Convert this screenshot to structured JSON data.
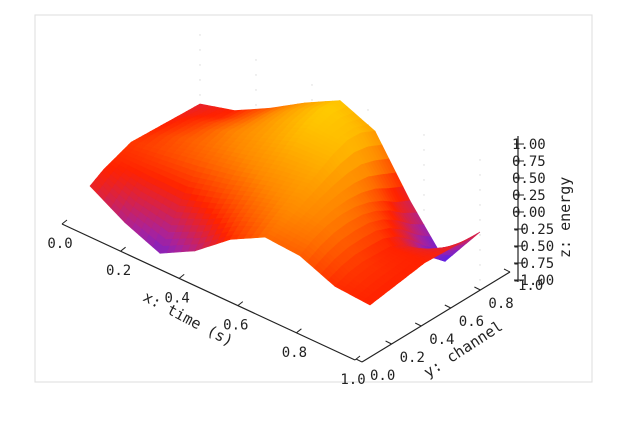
{
  "chart_data": {
    "type": "surface",
    "title": "",
    "xlabel": "x: time (s)",
    "ylabel": "y: channel",
    "zlabel": "z: energy",
    "xlim": [
      0.0,
      1.0
    ],
    "ylim": [
      0.0,
      1.0
    ],
    "zlim": [
      -1.0,
      1.0
    ],
    "x_ticks": [
      "0.0",
      "0.2",
      "0.4",
      "0.6",
      "0.8",
      "1.0"
    ],
    "y_ticks": [
      "0.0",
      "0.2",
      "0.4",
      "0.6",
      "0.8",
      "1.0"
    ],
    "z_ticks": [
      "1.00",
      "0.75",
      "0.50",
      "0.25",
      "0.00",
      "-0.25",
      "-0.50",
      "-0.75",
      "-1.00"
    ],
    "grid": true,
    "colormap": [
      "#4422ff",
      "#aa2299",
      "#ff2200",
      "#ff8800",
      "#ffcc00"
    ],
    "x": [
      0.0,
      0.125,
      0.25,
      0.375,
      0.5,
      0.625,
      0.75,
      0.875,
      1.0
    ],
    "y": [
      0.0,
      0.125,
      0.25,
      0.375,
      0.5,
      0.625,
      0.75,
      0.875,
      1.0
    ],
    "z": [
      [
        -0.1,
        -0.45,
        -0.7,
        -0.4,
        0.05,
        0.35,
        0.3,
        0.05,
        0.0
      ],
      [
        0.0,
        -0.2,
        -0.3,
        -0.05,
        0.25,
        0.45,
        0.4,
        0.1,
        0.0
      ],
      [
        0.05,
        0.05,
        0.05,
        0.2,
        0.4,
        0.55,
        0.45,
        0.1,
        0.0
      ],
      [
        0.1,
        0.2,
        0.3,
        0.4,
        0.55,
        0.65,
        0.45,
        0.05,
        0.0
      ],
      [
        0.05,
        0.25,
        0.4,
        0.55,
        0.7,
        0.75,
        0.4,
        0.0,
        0.0
      ],
      [
        0.0,
        0.2,
        0.45,
        0.65,
        0.85,
        0.85,
        0.3,
        -0.15,
        -0.05
      ],
      [
        -0.05,
        0.15,
        0.4,
        0.7,
        0.95,
        0.9,
        0.15,
        -0.4,
        -0.1
      ],
      [
        -0.1,
        0.05,
        0.35,
        0.7,
        1.0,
        0.85,
        -0.05,
        -0.7,
        -0.15
      ],
      [
        -0.15,
        0.0,
        0.3,
        0.65,
        0.95,
        0.7,
        -0.2,
        -0.95,
        -0.2
      ]
    ]
  }
}
